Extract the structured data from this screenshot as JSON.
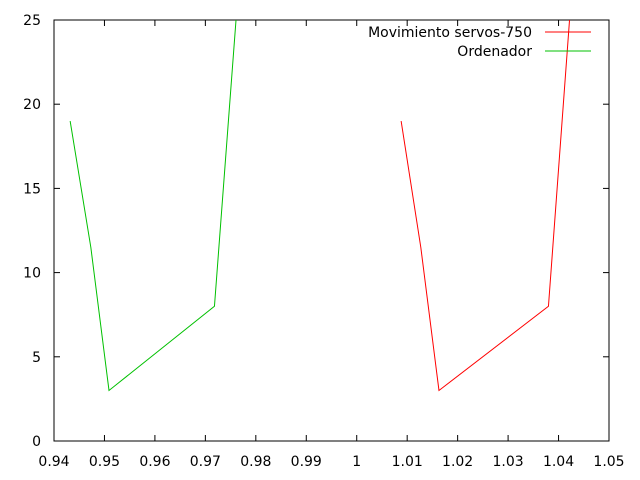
{
  "chart_data": {
    "type": "line",
    "title": "",
    "xlabel": "",
    "ylabel": "",
    "xlim": [
      0.94,
      1.05
    ],
    "ylim": [
      0,
      25
    ],
    "xticks": [
      "0.94",
      "0.95",
      "0.96",
      "0.97",
      "0.98",
      "0.99",
      "1",
      "1.01",
      "1.02",
      "1.03",
      "1.04",
      "1.05"
    ],
    "yticks": [
      "0",
      "5",
      "10",
      "15",
      "20",
      "25"
    ],
    "grid": false,
    "legend_position": "top-right",
    "series": [
      {
        "name": "Movimiento servos-750",
        "color": "#ff0000",
        "points": [
          [
            1.0088,
            19.0
          ],
          [
            1.0127,
            11.5
          ],
          [
            1.0163,
            3.0
          ],
          [
            1.038,
            8.0
          ],
          [
            1.0423,
            25.5
          ]
        ]
      },
      {
        "name": "Ordenador",
        "color": "#00c000",
        "points": [
          [
            0.9432,
            19.0
          ],
          [
            0.9473,
            11.5
          ],
          [
            0.9509,
            3.0
          ],
          [
            0.9718,
            8.0
          ],
          [
            0.9762,
            25.5
          ]
        ]
      }
    ]
  }
}
